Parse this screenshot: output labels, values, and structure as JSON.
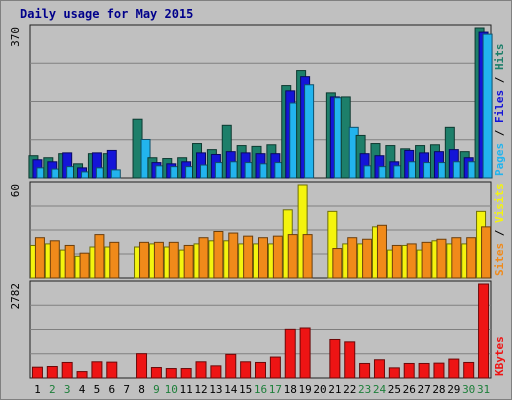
{
  "chart_data": {
    "type": "bar",
    "title": "Daily usage for May 2015",
    "categories": [
      "1",
      "2",
      "3",
      "4",
      "5",
      "6",
      "7",
      "8",
      "9",
      "10",
      "11",
      "12",
      "13",
      "14",
      "15",
      "16",
      "17",
      "18",
      "19",
      "20",
      "21",
      "22",
      "23",
      "24",
      "25",
      "26",
      "27",
      "28",
      "29",
      "30",
      "31"
    ],
    "weekend_days": [
      "2",
      "3",
      "9",
      "10",
      "16",
      "17",
      "23",
      "24",
      "30",
      "31"
    ],
    "panels": [
      {
        "id": "hits",
        "ymax_label": "370",
        "ymax": 370,
        "legend": [
          "Pages",
          "Files",
          "Hits"
        ],
        "series": [
          {
            "name": "Hits",
            "color": "#1d7f6a",
            "values": [
              55,
              50,
              60,
              35,
              60,
              60,
              0,
              145,
              50,
              48,
              50,
              85,
              70,
              130,
              80,
              78,
              82,
              228,
              265,
              0,
              210,
              200,
              105,
              85,
              80,
              72,
              80,
              82,
              125,
              65,
              370
            ]
          },
          {
            "name": "Files",
            "color": "#1414d8",
            "values": [
              45,
              40,
              62,
              25,
              62,
              68,
              0,
              0,
              38,
              35,
              40,
              62,
              58,
              65,
              62,
              60,
              60,
              215,
              250,
              0,
              200,
              0,
              60,
              55,
              40,
              68,
              62,
              65,
              70,
              50,
              360
            ]
          },
          {
            "name": "Pages",
            "color": "#22b4ee",
            "values": [
              25,
              22,
              28,
              15,
              25,
              20,
              0,
              95,
              30,
              28,
              28,
              32,
              38,
              40,
              38,
              35,
              38,
              185,
              230,
              0,
              198,
              125,
              30,
              28,
              30,
              40,
              38,
              38,
              40,
              40,
              355
            ]
          }
        ]
      },
      {
        "id": "visits",
        "ymax_label": "60",
        "ymax": 60,
        "legend": [
          "Sites",
          "Visits"
        ],
        "series": [
          {
            "name": "Visits",
            "color": "#f4f40e",
            "values": [
              21,
              22,
              18,
              14,
              20,
              20,
              0,
              20,
              22,
              20,
              18,
              22,
              24,
              24,
              22,
              22,
              22,
              44,
              60,
              0,
              43,
              22,
              22,
              33,
              18,
              21,
              18,
              24,
              22,
              22,
              43
            ]
          },
          {
            "name": "Sites",
            "color": "#f08a1a",
            "values": [
              26,
              24,
              21,
              16,
              28,
              23,
              0,
              23,
              23,
              23,
              21,
              26,
              30,
              29,
              27,
              26,
              27,
              28,
              28,
              0,
              19,
              26,
              25,
              34,
              21,
              22,
              23,
              25,
              26,
              26,
              33
            ]
          }
        ]
      },
      {
        "id": "kbytes",
        "ymax_label": "2782",
        "ymax": 2782,
        "legend": [
          "KBytes"
        ],
        "series": [
          {
            "name": "KBytes",
            "color": "#ee1414",
            "values": [
              320,
              340,
              460,
              190,
              480,
              470,
              0,
              720,
              310,
              280,
              280,
              480,
              360,
              700,
              480,
              460,
              620,
              1440,
              1480,
              0,
              1140,
              1070,
              430,
              540,
              300,
              430,
              430,
              440,
              560,
              460,
              2782
            ]
          }
        ]
      }
    ]
  }
}
